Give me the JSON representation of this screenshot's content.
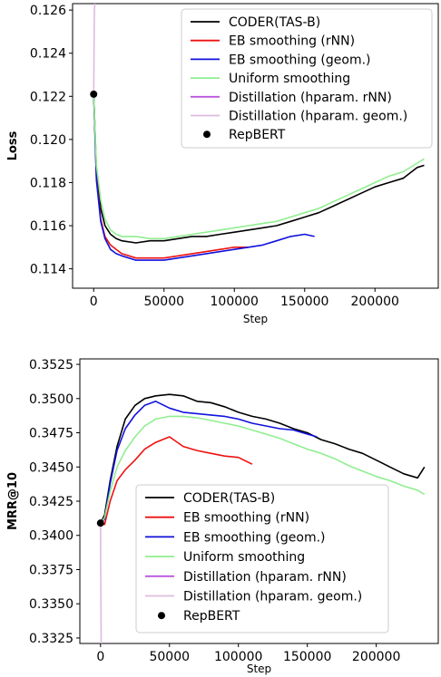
{
  "colors": {
    "CODER(TAS-B)": "#000000",
    "EB smoothing (rNN)": "#ee1111",
    "EB smoothing (geom.)": "#1111dd",
    "Uniform smoothing": "#90ee90",
    "Distillation (hparam. rNN)": "#bb55dd",
    "Distillation (hparam. geom.)": "#ddbbdd",
    "RepBERT": "#000000"
  },
  "chart_data": [
    {
      "type": "line",
      "title": "",
      "xlabel": "Step",
      "ylabel": "Loss",
      "xlim": [
        -15000,
        245000
      ],
      "ylim": [
        0.1131,
        0.1263
      ],
      "xticks": [
        0,
        50000,
        100000,
        150000,
        200000
      ],
      "xtick_labels": [
        "0",
        "50000",
        "100000",
        "150000",
        "200000"
      ],
      "yticks": [
        0.114,
        0.116,
        0.118,
        0.12,
        0.122,
        0.124,
        0.126
      ],
      "ytick_labels": [
        "0.114",
        "0.116",
        "0.118",
        "0.120",
        "0.122",
        "0.124",
        "0.126"
      ],
      "legend_loc": "upper-right",
      "legend": [
        "CODER(TAS-B)",
        "EB smoothing (rNN)",
        "EB smoothing (geom.)",
        "Uniform smoothing",
        "Distillation (hparam. rNN)",
        "Distillation (hparam. geom.)",
        "RepBERT"
      ],
      "series": [
        {
          "name": "CODER(TAS-B)",
          "x": [
            0,
            2000,
            5000,
            8000,
            12000,
            16000,
            20000,
            30000,
            40000,
            50000,
            60000,
            70000,
            80000,
            90000,
            100000,
            110000,
            120000,
            130000,
            140000,
            150000,
            160000,
            170000,
            180000,
            190000,
            200000,
            210000,
            220000,
            230000,
            235000
          ],
          "y": [
            0.1221,
            0.1185,
            0.1168,
            0.116,
            0.1156,
            0.1154,
            0.1153,
            0.1152,
            0.1153,
            0.1153,
            0.1154,
            0.1155,
            0.1155,
            0.1156,
            0.1157,
            0.1158,
            0.1159,
            0.116,
            0.1162,
            0.1164,
            0.1166,
            0.1169,
            0.1172,
            0.1175,
            0.1178,
            0.118,
            0.1182,
            0.1187,
            0.1188
          ]
        },
        {
          "name": "EB smoothing (rNN)",
          "x": [
            0,
            2000,
            5000,
            8000,
            12000,
            16000,
            20000,
            30000,
            40000,
            50000,
            60000,
            70000,
            80000,
            90000,
            100000,
            110000
          ],
          "y": [
            0.1221,
            0.1182,
            0.1163,
            0.1155,
            0.1151,
            0.1149,
            0.1147,
            0.1145,
            0.1145,
            0.1145,
            0.1146,
            0.1147,
            0.1148,
            0.1149,
            0.115,
            0.115
          ]
        },
        {
          "name": "EB smoothing (geom.)",
          "x": [
            0,
            2000,
            5000,
            8000,
            12000,
            16000,
            20000,
            30000,
            40000,
            50000,
            60000,
            70000,
            80000,
            90000,
            100000,
            110000,
            120000,
            130000,
            140000,
            150000,
            157000
          ],
          "y": [
            0.1221,
            0.1181,
            0.1162,
            0.1154,
            0.1149,
            0.1147,
            0.1146,
            0.1144,
            0.1144,
            0.1144,
            0.1145,
            0.1146,
            0.1147,
            0.1148,
            0.1149,
            0.115,
            0.1151,
            0.1153,
            0.1155,
            0.1156,
            0.1155
          ]
        },
        {
          "name": "Uniform smoothing",
          "x": [
            0,
            2000,
            5000,
            8000,
            12000,
            16000,
            20000,
            30000,
            40000,
            50000,
            60000,
            70000,
            80000,
            90000,
            100000,
            110000,
            120000,
            130000,
            140000,
            150000,
            160000,
            170000,
            180000,
            190000,
            200000,
            210000,
            220000,
            230000,
            235000
          ],
          "y": [
            0.1221,
            0.1188,
            0.1172,
            0.1163,
            0.1158,
            0.1156,
            0.1155,
            0.1155,
            0.1154,
            0.1154,
            0.1155,
            0.1156,
            0.1157,
            0.1158,
            0.1159,
            0.116,
            0.1161,
            0.1162,
            0.1164,
            0.1166,
            0.1168,
            0.1171,
            0.1174,
            0.1177,
            0.118,
            0.1183,
            0.1185,
            0.1189,
            0.1191
          ]
        },
        {
          "name": "Distillation (hparam. rNN)",
          "x": [
            0
          ],
          "y": [
            0.1221
          ]
        },
        {
          "name": "Distillation (hparam. geom.)",
          "x": [
            0,
            200,
            500,
            900
          ],
          "y": [
            0.1221,
            0.124,
            0.126,
            0.1263
          ]
        },
        {
          "name": "RepBERT",
          "marker": "dot",
          "x": [
            0
          ],
          "y": [
            0.1221
          ]
        }
      ]
    },
    {
      "type": "line",
      "title": "",
      "xlabel": "Step",
      "ylabel": "MRR@10",
      "xlim": [
        -15000,
        245000
      ],
      "ylim": [
        0.3321,
        0.3529
      ],
      "xticks": [
        0,
        50000,
        100000,
        150000,
        200000
      ],
      "xtick_labels": [
        "0",
        "50000",
        "100000",
        "150000",
        "200000"
      ],
      "yticks": [
        0.3325,
        0.335,
        0.3375,
        0.34,
        0.3425,
        0.345,
        0.3475,
        0.35,
        0.3525
      ],
      "ytick_labels": [
        "0.3325",
        "0.3350",
        "0.3375",
        "0.3400",
        "0.3425",
        "0.3450",
        "0.3475",
        "0.3500",
        "0.3525"
      ],
      "legend_loc": "lower-center",
      "legend": [
        "CODER(TAS-B)",
        "EB smoothing (rNN)",
        "EB smoothing (geom.)",
        "Uniform smoothing",
        "Distillation (hparam. rNN)",
        "Distillation (hparam. geom.)",
        "RepBERT"
      ],
      "series": [
        {
          "name": "CODER(TAS-B)",
          "x": [
            0,
            3000,
            7000,
            12000,
            18000,
            25000,
            32000,
            40000,
            50000,
            60000,
            70000,
            80000,
            90000,
            100000,
            110000,
            120000,
            130000,
            140000,
            150000,
            160000,
            170000,
            180000,
            190000,
            200000,
            210000,
            220000,
            230000,
            235000
          ],
          "y": [
            0.3409,
            0.3415,
            0.344,
            0.3465,
            0.3485,
            0.3495,
            0.35,
            0.3502,
            0.3503,
            0.3502,
            0.3498,
            0.3497,
            0.3494,
            0.349,
            0.3487,
            0.3485,
            0.3482,
            0.3478,
            0.3475,
            0.347,
            0.3467,
            0.3463,
            0.346,
            0.3455,
            0.345,
            0.3445,
            0.3442,
            0.345
          ]
        },
        {
          "name": "EB smoothing (rNN)",
          "x": [
            0,
            3000,
            7000,
            12000,
            18000,
            25000,
            32000,
            40000,
            50000,
            60000,
            70000,
            80000,
            90000,
            100000,
            110000
          ],
          "y": [
            0.3409,
            0.3408,
            0.3425,
            0.344,
            0.3448,
            0.3455,
            0.3463,
            0.3468,
            0.3472,
            0.3465,
            0.3462,
            0.346,
            0.3458,
            0.3457,
            0.3452
          ]
        },
        {
          "name": "EB smoothing (geom.)",
          "x": [
            0,
            3000,
            7000,
            12000,
            18000,
            25000,
            32000,
            40000,
            50000,
            60000,
            70000,
            80000,
            90000,
            100000,
            110000,
            120000,
            130000,
            140000,
            150000,
            157000
          ],
          "y": [
            0.3409,
            0.3412,
            0.3438,
            0.3462,
            0.3478,
            0.3488,
            0.3495,
            0.3498,
            0.3493,
            0.349,
            0.3489,
            0.3488,
            0.3487,
            0.3485,
            0.3482,
            0.348,
            0.3478,
            0.3477,
            0.3474,
            0.3472
          ]
        },
        {
          "name": "Uniform smoothing",
          "x": [
            0,
            3000,
            7000,
            12000,
            18000,
            25000,
            32000,
            40000,
            50000,
            60000,
            70000,
            80000,
            90000,
            100000,
            110000,
            120000,
            130000,
            140000,
            150000,
            160000,
            170000,
            180000,
            190000,
            200000,
            210000,
            220000,
            230000,
            235000
          ],
          "y": [
            0.3409,
            0.3413,
            0.3432,
            0.345,
            0.3462,
            0.3472,
            0.348,
            0.3485,
            0.3487,
            0.3487,
            0.3486,
            0.3484,
            0.3482,
            0.348,
            0.3477,
            0.3474,
            0.3471,
            0.3467,
            0.3463,
            0.346,
            0.3456,
            0.3451,
            0.3447,
            0.3443,
            0.344,
            0.3436,
            0.3433,
            0.343
          ]
        },
        {
          "name": "Distillation (hparam. rNN)",
          "x": [
            0
          ],
          "y": [
            0.3409
          ]
        },
        {
          "name": "Distillation (hparam. geom.)",
          "x": [
            0,
            100,
            300,
            500
          ],
          "y": [
            0.3409,
            0.338,
            0.335,
            0.3321
          ]
        },
        {
          "name": "RepBERT",
          "marker": "dot",
          "x": [
            0
          ],
          "y": [
            0.3409
          ]
        }
      ]
    }
  ]
}
